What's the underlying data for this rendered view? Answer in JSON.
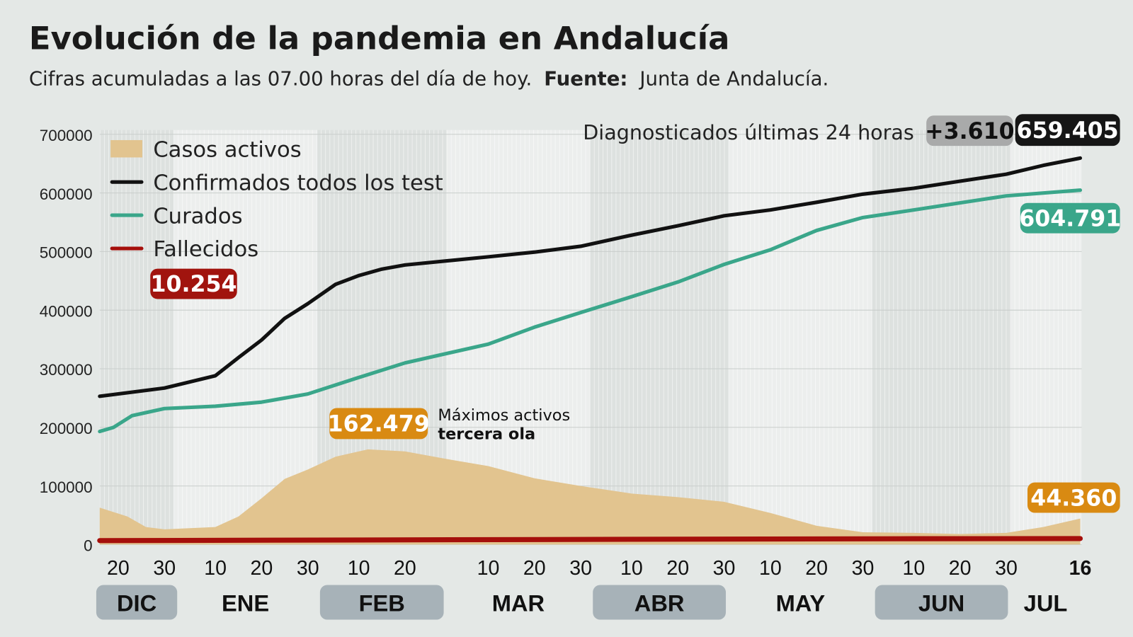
{
  "header": {
    "title": "Evolución de la pandemia en Andalucía",
    "subtitle_text": "Cifras acumuladas a las 07.00 horas del día de hoy.",
    "subtitle_source_label": "Fuente:",
    "subtitle_source": "Junta de Andalucía."
  },
  "chart_data": {
    "type": "line",
    "title": "Evolución de la pandemia en Andalucía",
    "x_range": [
      "2020-12-16",
      "2021-07-16"
    ],
    "ylim": [
      0,
      700000
    ],
    "y_ticks": [
      "0",
      "100000",
      "200000",
      "300000",
      "400000",
      "500000",
      "600000",
      "700000"
    ],
    "y_tick_values": [
      0,
      100000,
      200000,
      300000,
      400000,
      500000,
      600000,
      700000
    ],
    "grid": true,
    "legend_placement": "top-left",
    "x_ticks": [
      {
        "date": "2020-12-20",
        "label": "20"
      },
      {
        "date": "2020-12-30",
        "label": "30"
      },
      {
        "date": "2021-01-10",
        "label": "10"
      },
      {
        "date": "2021-01-20",
        "label": "20"
      },
      {
        "date": "2021-01-30",
        "label": "30"
      },
      {
        "date": "2021-02-10",
        "label": "10"
      },
      {
        "date": "2021-02-20",
        "label": "20"
      },
      {
        "date": "2021-03-10",
        "label": "10"
      },
      {
        "date": "2021-03-20",
        "label": "20"
      },
      {
        "date": "2021-03-30",
        "label": "30"
      },
      {
        "date": "2021-04-10",
        "label": "10"
      },
      {
        "date": "2021-04-20",
        "label": "20"
      },
      {
        "date": "2021-04-30",
        "label": "30"
      },
      {
        "date": "2021-05-10",
        "label": "10"
      },
      {
        "date": "2021-05-20",
        "label": "20"
      },
      {
        "date": "2021-05-30",
        "label": "30"
      },
      {
        "date": "2021-06-10",
        "label": "10"
      },
      {
        "date": "2021-06-20",
        "label": "20"
      },
      {
        "date": "2021-06-30",
        "label": "30"
      },
      {
        "date": "2021-07-16",
        "label": "16",
        "bold": true
      }
    ],
    "months": [
      {
        "label": "DIC",
        "start": "2020-12-16",
        "end": "2021-01-01",
        "highlight": true
      },
      {
        "label": "ENE",
        "start": "2021-01-01",
        "end": "2021-02-01",
        "highlight": false
      },
      {
        "label": "FEB",
        "start": "2021-02-01",
        "end": "2021-03-01",
        "highlight": true
      },
      {
        "label": "MAR",
        "start": "2021-03-01",
        "end": "2021-04-01",
        "highlight": false
      },
      {
        "label": "ABR",
        "start": "2021-04-01",
        "end": "2021-05-01",
        "highlight": true
      },
      {
        "label": "MAY",
        "start": "2021-05-01",
        "end": "2021-06-01",
        "highlight": false
      },
      {
        "label": "JUN",
        "start": "2021-06-01",
        "end": "2021-07-01",
        "highlight": true
      },
      {
        "label": "JUL",
        "start": "2021-07-01",
        "end": "2021-07-16",
        "highlight": false
      }
    ],
    "series": [
      {
        "name": "Casos activos",
        "kind": "area",
        "color": "#e2c48f",
        "points": [
          [
            "2020-12-16",
            63000
          ],
          [
            "2020-12-22",
            48000
          ],
          [
            "2020-12-26",
            30000
          ],
          [
            "2020-12-30",
            26000
          ],
          [
            "2021-01-10",
            30000
          ],
          [
            "2021-01-15",
            48000
          ],
          [
            "2021-01-20",
            79000
          ],
          [
            "2021-01-25",
            112000
          ],
          [
            "2021-01-30",
            128000
          ],
          [
            "2021-02-05",
            150000
          ],
          [
            "2021-02-12",
            162479
          ],
          [
            "2021-02-20",
            159000
          ],
          [
            "2021-03-01",
            146000
          ],
          [
            "2021-03-10",
            134000
          ],
          [
            "2021-03-20",
            113000
          ],
          [
            "2021-03-30",
            100000
          ],
          [
            "2021-04-10",
            87000
          ],
          [
            "2021-04-20",
            81000
          ],
          [
            "2021-04-30",
            73000
          ],
          [
            "2021-05-10",
            54000
          ],
          [
            "2021-05-20",
            32000
          ],
          [
            "2021-05-30",
            21000
          ],
          [
            "2021-06-10",
            20000
          ],
          [
            "2021-06-20",
            18000
          ],
          [
            "2021-06-30",
            20000
          ],
          [
            "2021-07-08",
            30000
          ],
          [
            "2021-07-16",
            44360
          ]
        ]
      },
      {
        "name": "Confirmados todos los test",
        "kind": "line",
        "color": "#111111",
        "points": [
          [
            "2020-12-16",
            253000
          ],
          [
            "2020-12-30",
            267000
          ],
          [
            "2021-01-10",
            288000
          ],
          [
            "2021-01-15",
            319000
          ],
          [
            "2021-01-20",
            349000
          ],
          [
            "2021-01-25",
            386000
          ],
          [
            "2021-01-30",
            411000
          ],
          [
            "2021-02-05",
            444000
          ],
          [
            "2021-02-10",
            459000
          ],
          [
            "2021-02-15",
            470000
          ],
          [
            "2021-02-20",
            477000
          ],
          [
            "2021-03-10",
            491000
          ],
          [
            "2021-03-20",
            499000
          ],
          [
            "2021-03-30",
            509000
          ],
          [
            "2021-04-10",
            528000
          ],
          [
            "2021-04-20",
            544000
          ],
          [
            "2021-04-30",
            561000
          ],
          [
            "2021-05-10",
            571000
          ],
          [
            "2021-05-20",
            584000
          ],
          [
            "2021-05-30",
            598000
          ],
          [
            "2021-06-10",
            608000
          ],
          [
            "2021-06-20",
            620000
          ],
          [
            "2021-06-30",
            632000
          ],
          [
            "2021-07-08",
            647000
          ],
          [
            "2021-07-16",
            659405
          ]
        ]
      },
      {
        "name": "Curados",
        "kind": "line",
        "color": "#3aa68a",
        "points": [
          [
            "2020-12-16",
            193000
          ],
          [
            "2020-12-19",
            200000
          ],
          [
            "2020-12-23",
            220000
          ],
          [
            "2020-12-30",
            232000
          ],
          [
            "2021-01-10",
            236000
          ],
          [
            "2021-01-20",
            243000
          ],
          [
            "2021-01-30",
            257000
          ],
          [
            "2021-02-10",
            285000
          ],
          [
            "2021-02-20",
            310000
          ],
          [
            "2021-03-10",
            342000
          ],
          [
            "2021-03-20",
            371000
          ],
          [
            "2021-03-30",
            396000
          ],
          [
            "2021-04-10",
            423000
          ],
          [
            "2021-04-20",
            448000
          ],
          [
            "2021-04-30",
            478000
          ],
          [
            "2021-05-10",
            503000
          ],
          [
            "2021-05-20",
            536000
          ],
          [
            "2021-05-30",
            558000
          ],
          [
            "2021-06-10",
            571000
          ],
          [
            "2021-06-20",
            583000
          ],
          [
            "2021-06-30",
            595000
          ],
          [
            "2021-07-16",
            604791
          ]
        ]
      },
      {
        "name": "Fallecidos",
        "kind": "line",
        "color": "#a50f0b",
        "points": [
          [
            "2020-12-16",
            6800
          ],
          [
            "2021-02-10",
            7800
          ],
          [
            "2021-04-10",
            9000
          ],
          [
            "2021-06-10",
            10000
          ],
          [
            "2021-07-16",
            10254
          ]
        ]
      }
    ],
    "annotations": {
      "fallecidos_label": "10.254",
      "peak_label": "162.479",
      "peak_note_line1": "Máximos activos",
      "peak_note_line2": "tercera ola",
      "diagnosed_text": "Diagnosticados últimas 24 horas",
      "diagnosed_delta": "+3.610",
      "confirmados_label": "659.405",
      "curados_label": "604.791",
      "activos_label": "44.360"
    },
    "colors": {
      "background": "#e4e8e6",
      "month_pill": "#a7b2b8",
      "activos_pill": "#d98a12",
      "fallecidos_pill": "#a1140e"
    }
  }
}
